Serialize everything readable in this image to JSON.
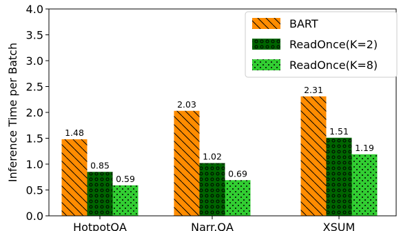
{
  "chart_data": {
    "type": "bar",
    "categories": [
      "HotpotQA",
      "Narr.QA",
      "XSUM"
    ],
    "series": [
      {
        "name": "BART",
        "values": [
          1.48,
          2.03,
          2.31
        ],
        "color": "#ff8c00",
        "hatch": "diagonal"
      },
      {
        "name": "ReadOnce(K=2)",
        "values": [
          0.85,
          1.02,
          1.51
        ],
        "color": "#006400",
        "hatch": "circles"
      },
      {
        "name": "ReadOnce(K=8)",
        "values": [
          0.59,
          0.69,
          1.19
        ],
        "color": "#32cd32",
        "hatch": "dots"
      }
    ],
    "data_labels": [
      [
        "1.48",
        "2.03",
        "2.31"
      ],
      [
        "0.85",
        "1.02",
        "1.51"
      ],
      [
        "0.59",
        "0.69",
        "1.19"
      ]
    ],
    "yticks": [
      "0.0",
      "0.5",
      "1.0",
      "1.5",
      "2.0",
      "2.5",
      "3.0",
      "3.5",
      "4.0"
    ],
    "ylabel": "Inference Time per Batch",
    "xlabel": "",
    "title": "",
    "ylim": [
      0,
      4.0
    ],
    "legend_position": "top-right",
    "grid": false
  }
}
